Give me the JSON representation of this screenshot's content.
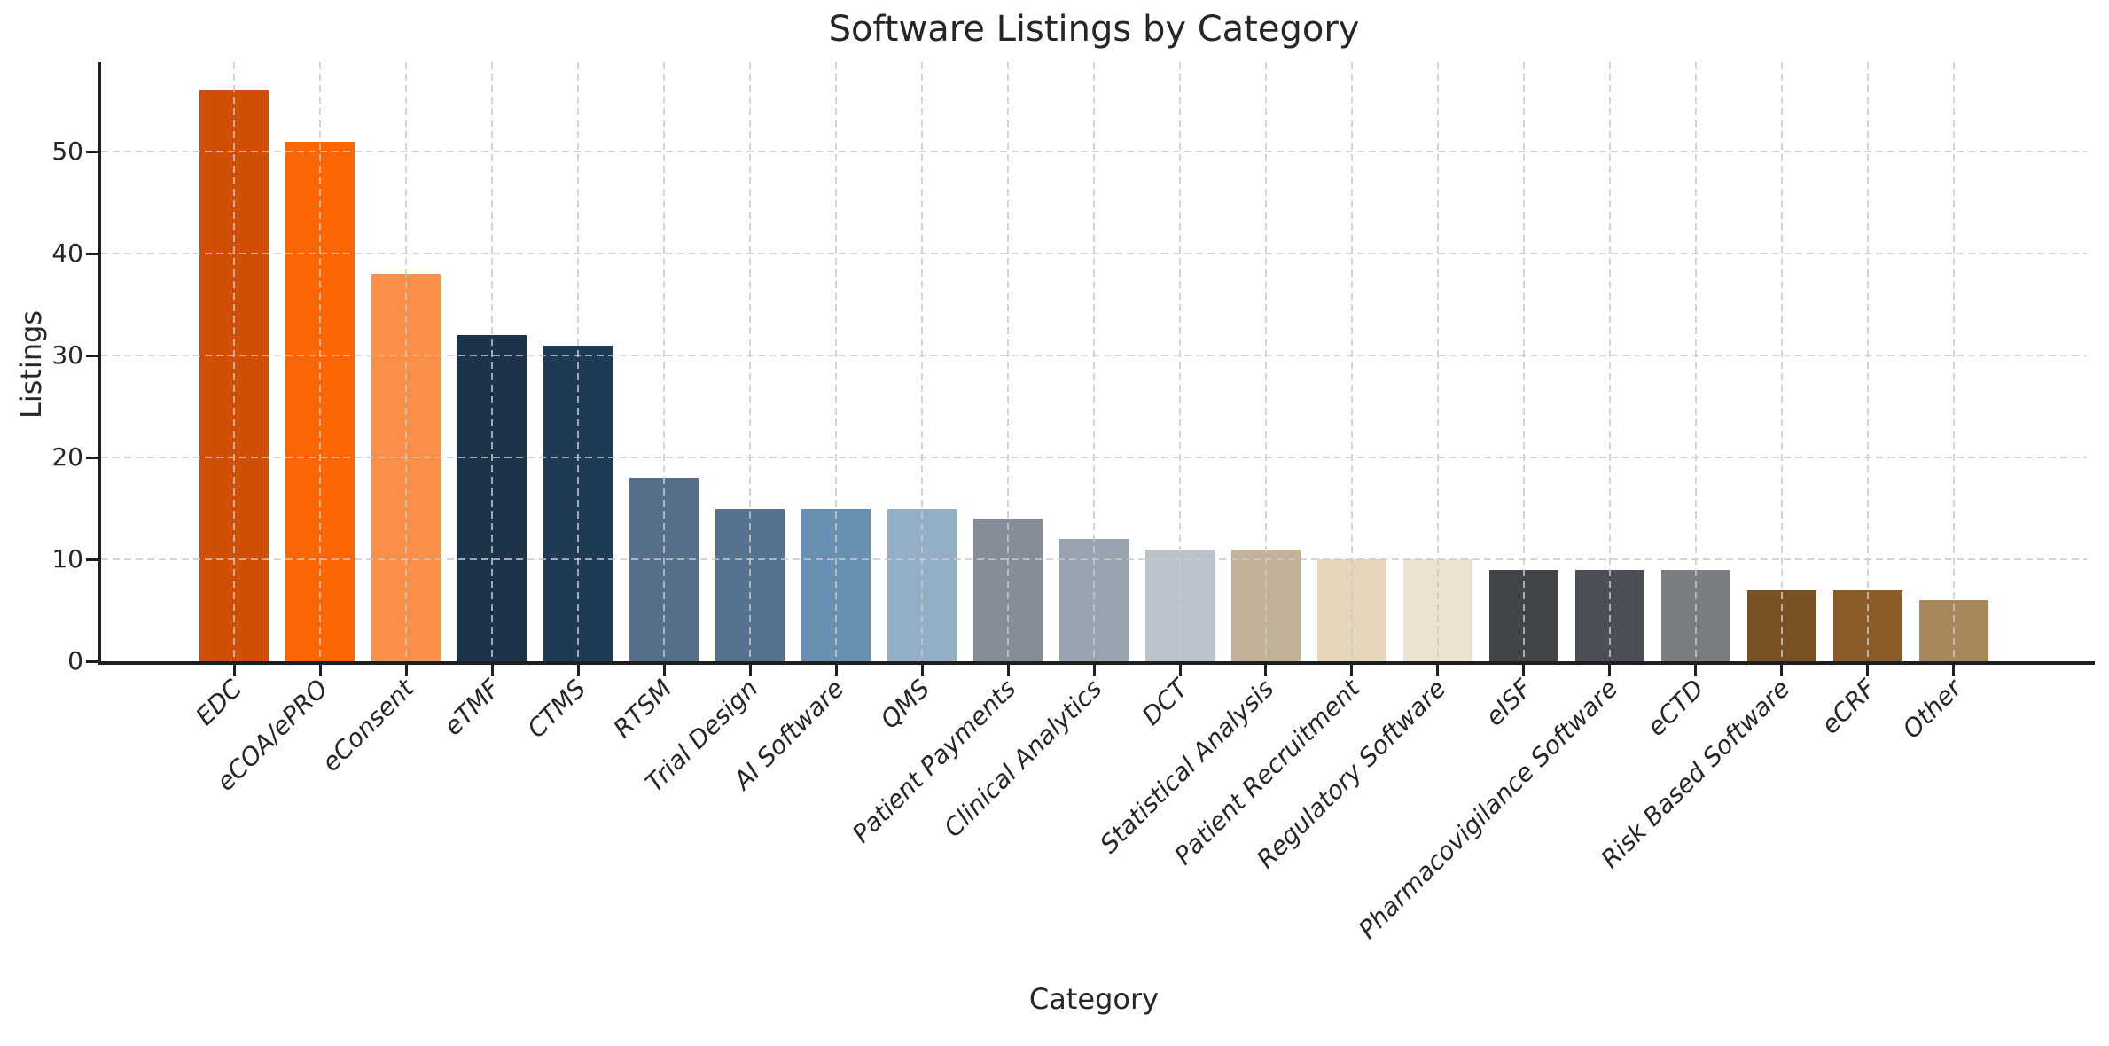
{
  "figure": {
    "background_color": "#ffffff",
    "text_color": "#262626",
    "axis_color": "#1f1f1f",
    "gridline_color": "#c9c9c9"
  },
  "chart_data": {
    "type": "bar",
    "title": "Software Listings by Category",
    "xlabel": "Category",
    "ylabel": "Listings",
    "categories": [
      "EDC",
      "eCOA/ePRO",
      "eConsent",
      "eTMF",
      "CTMS",
      "RTSM",
      "Trial Design",
      "AI Software",
      "QMS",
      "Patient Payments",
      "Clinical Analytics",
      "DCT",
      "Statistical Analysis",
      "Patient Recruitment",
      "Regulatory Software",
      "eISF",
      "Pharmacovigilance Software",
      "eCTD",
      "Risk Based Software",
      "eCRF",
      "Other"
    ],
    "values": [
      56,
      51,
      38,
      32,
      31,
      18,
      15,
      15,
      15,
      14,
      12,
      11,
      11,
      10,
      10,
      9,
      9,
      9,
      7,
      7,
      6
    ],
    "bar_colors": [
      "#d14f04",
      "#fb6602",
      "#fa9048",
      "#1c3349",
      "#1f3a55",
      "#566f8a",
      "#55738f",
      "#6890b2",
      "#93afc8",
      "#868d99",
      "#9aa4b1",
      "#bcc2cc",
      "#c2b299",
      "#e6d7bc",
      "#ece2d0",
      "#414549",
      "#4b5057",
      "#7a7e83",
      "#7a5125",
      "#8b5b2a",
      "#a8875d"
    ],
    "yticks": [
      0,
      10,
      20,
      30,
      40,
      50
    ],
    "ylim": [
      0,
      58.8
    ],
    "grid": {
      "horizontal": true,
      "vertical_at_categories": true,
      "style": "dashed",
      "drawn_over_bars": true
    },
    "legend": "none",
    "x_tick_label_rotation_deg": 45,
    "x_tick_label_italic": true
  }
}
